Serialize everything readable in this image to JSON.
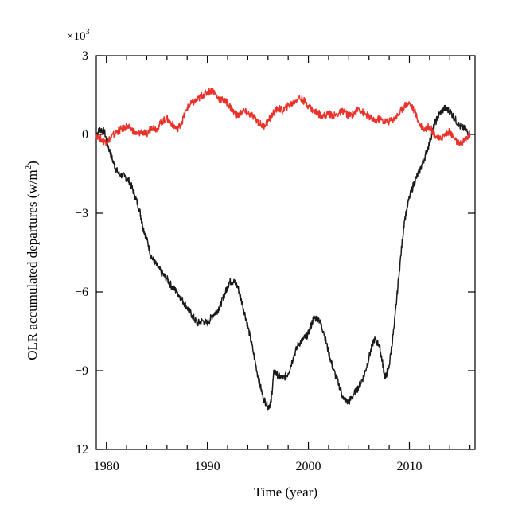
{
  "chart_data": {
    "type": "line",
    "title": "",
    "xlabel": "Time (year)",
    "ylabel": "OLR accumulated departures (w/m²)",
    "ylabel_parts": {
      "main": "OLR accumulated departures (w/m",
      "sup": "2",
      "end": ")"
    },
    "y_multiplier": {
      "base": "×10",
      "exp": "3"
    },
    "xlim": [
      1979,
      2016.5
    ],
    "ylim": [
      -12,
      3
    ],
    "x_ticks": [
      1980,
      1990,
      2000,
      2010
    ],
    "x_tick_labels": [
      "1980",
      "1990",
      "2000",
      "2010"
    ],
    "y_ticks": [
      3,
      0,
      -3,
      -6,
      -9,
      -12
    ],
    "y_tick_labels": [
      "3",
      "0",
      "−3",
      "−6",
      "−9",
      "−12"
    ],
    "grid": false,
    "legend": "none",
    "series": [
      {
        "color": "#1a1a1a",
        "x": [
          1979.0,
          1979.4,
          1979.8,
          1980.3,
          1980.8,
          1981.2,
          1981.8,
          1982.3,
          1982.8,
          1983.3,
          1983.6,
          1984.0,
          1984.5,
          1985.0,
          1985.5,
          1986.0,
          1986.5,
          1987.0,
          1987.5,
          1988.0,
          1988.5,
          1989.0,
          1989.5,
          1990.0,
          1990.5,
          1991.0,
          1991.4,
          1991.8,
          1992.2,
          1992.6,
          1993.0,
          1993.5,
          1994.0,
          1994.5,
          1995.0,
          1995.5,
          1996.0,
          1996.3,
          1996.6,
          1997.0,
          1997.5,
          1998.0,
          1998.5,
          1999.0,
          1999.5,
          2000.0,
          2000.5,
          2001.0,
          2001.5,
          2002.0,
          2002.5,
          2003.0,
          2003.5,
          2004.0,
          2004.5,
          2005.0,
          2005.5,
          2006.0,
          2006.5,
          2007.0,
          2007.3,
          2007.6,
          2008.0,
          2008.5,
          2009.0,
          2009.5,
          2010.0,
          2010.5,
          2011.0,
          2011.5,
          2012.0,
          2012.5,
          2013.0,
          2013.5,
          2014.0,
          2014.5,
          2015.0,
          2015.5,
          2016.0
        ],
        "values": [
          0.0,
          0.2,
          0.1,
          -0.6,
          -1.2,
          -1.5,
          -1.6,
          -1.8,
          -2.3,
          -2.9,
          -3.5,
          -4.0,
          -4.7,
          -5.0,
          -5.3,
          -5.5,
          -5.8,
          -6.0,
          -6.3,
          -6.6,
          -6.9,
          -7.2,
          -7.1,
          -7.2,
          -6.9,
          -6.7,
          -6.4,
          -6.0,
          -5.6,
          -5.6,
          -5.8,
          -6.5,
          -7.3,
          -8.2,
          -9.2,
          -10.0,
          -10.4,
          -10.2,
          -9.0,
          -9.2,
          -9.3,
          -9.1,
          -8.5,
          -8.0,
          -7.8,
          -7.6,
          -7.0,
          -7.0,
          -7.5,
          -8.3,
          -9.0,
          -9.5,
          -10.1,
          -10.2,
          -9.9,
          -9.6,
          -9.2,
          -8.5,
          -7.8,
          -8.0,
          -8.6,
          -9.3,
          -8.8,
          -7.3,
          -5.2,
          -3.3,
          -2.4,
          -1.8,
          -1.4,
          -0.9,
          -0.3,
          0.4,
          0.8,
          1.0,
          0.9,
          0.6,
          0.3,
          0.2,
          0.0
        ]
      },
      {
        "color": "#e8322a",
        "x": [
          1979.0,
          1979.5,
          1980.0,
          1980.5,
          1981.0,
          1981.5,
          1982.0,
          1982.5,
          1983.0,
          1983.5,
          1984.0,
          1984.5,
          1985.0,
          1985.5,
          1986.0,
          1986.5,
          1987.0,
          1987.5,
          1988.0,
          1988.5,
          1989.0,
          1989.5,
          1990.0,
          1990.5,
          1991.0,
          1991.5,
          1992.0,
          1992.5,
          1993.0,
          1993.5,
          1994.0,
          1994.5,
          1995.0,
          1995.5,
          1996.0,
          1996.5,
          1997.0,
          1997.5,
          1998.0,
          1998.5,
          1999.0,
          1999.5,
          2000.0,
          2000.5,
          2001.0,
          2001.5,
          2002.0,
          2002.5,
          2003.0,
          2003.5,
          2004.0,
          2004.5,
          2005.0,
          2005.5,
          2006.0,
          2006.5,
          2007.0,
          2007.5,
          2008.0,
          2008.5,
          2009.0,
          2009.5,
          2010.0,
          2010.5,
          2011.0,
          2011.5,
          2012.0,
          2012.5,
          2013.0,
          2013.5,
          2014.0,
          2014.5,
          2015.0,
          2015.5,
          2016.0
        ],
        "values": [
          0.0,
          -0.2,
          -0.3,
          -0.1,
          0.1,
          0.2,
          0.3,
          0.2,
          0.0,
          0.1,
          0.0,
          0.3,
          0.2,
          0.5,
          0.6,
          0.4,
          0.2,
          0.5,
          1.0,
          1.2,
          1.3,
          1.5,
          1.6,
          1.7,
          1.4,
          1.3,
          1.2,
          0.9,
          0.7,
          0.9,
          0.8,
          0.7,
          0.5,
          0.3,
          0.5,
          0.8,
          1.0,
          0.9,
          1.1,
          1.2,
          1.4,
          1.3,
          1.1,
          0.9,
          0.8,
          0.7,
          0.8,
          0.7,
          0.8,
          0.9,
          0.7,
          0.8,
          1.0,
          0.8,
          0.7,
          0.5,
          0.6,
          0.5,
          0.5,
          0.6,
          0.8,
          1.1,
          1.2,
          0.9,
          0.4,
          0.2,
          0.3,
          0.0,
          -0.2,
          0.0,
          0.1,
          -0.2,
          -0.4,
          -0.2,
          0.0
        ]
      }
    ]
  }
}
